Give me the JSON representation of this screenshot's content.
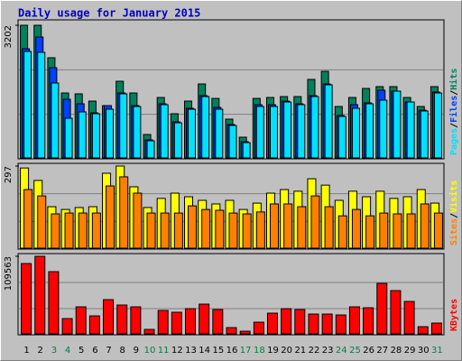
{
  "title": "Daily usage for January 2015",
  "chart_data": [
    {
      "type": "bar",
      "ylim": [
        0,
        3202
      ],
      "yticks": [
        3202
      ],
      "legend_separator": "/",
      "series": [
        {
          "name": "Hits",
          "color": "#00805c",
          "values": [
            3202,
            3202,
            2418,
            1568,
            1547,
            1372,
            1263,
            1851,
            1568,
            566,
            1459,
            1067,
            1372,
            1786,
            1437,
            937,
            501,
            1437,
            1459,
            1481,
            1481,
            1895,
            2091,
            1242,
            1459,
            1677,
            1721,
            1721,
            1459,
            1242,
            1721
          ]
        },
        {
          "name": "Files",
          "color": "#0040ff",
          "values": [
            2636,
            2919,
            2178,
            1416,
            1307,
            1089,
            1263,
            1568,
            1263,
            436,
            1307,
            871,
            1198,
            1503,
            1220,
            806,
            392,
            1285,
            1285,
            1372,
            1307,
            1503,
            1786,
            1024,
            1285,
            1328,
            1634,
            1612,
            1350,
            1154,
            1590
          ]
        },
        {
          "name": "Pages",
          "color": "#00e0ff",
          "values": [
            2570,
            2549,
            1808,
            958,
            1111,
            1067,
            1176,
            1547,
            1242,
            414,
            1285,
            849,
            1176,
            1481,
            1176,
            784,
            370,
            1242,
            1242,
            1350,
            1285,
            1481,
            1764,
            1002,
            1198,
            1307,
            1394,
            1612,
            1350,
            1133,
            1568
          ]
        }
      ]
    },
    {
      "type": "bar",
      "ylim": [
        0,
        297
      ],
      "yticks": [
        297
      ],
      "legend_separator": "/",
      "series": [
        {
          "name": "Visits",
          "color": "#ffff00",
          "values": [
            290,
            245,
            150,
            140,
            147,
            150,
            271,
            297,
            222,
            147,
            180,
            199,
            186,
            173,
            160,
            173,
            140,
            163,
            199,
            212,
            206,
            251,
            228,
            173,
            206,
            186,
            206,
            180,
            186,
            212,
            163
          ]
        },
        {
          "name": "Sites",
          "color": "#ff8000",
          "values": [
            212,
            189,
            124,
            127,
            127,
            127,
            225,
            258,
            199,
            127,
            127,
            127,
            153,
            140,
            137,
            127,
            124,
            131,
            160,
            160,
            150,
            189,
            150,
            117,
            140,
            117,
            127,
            124,
            124,
            160,
            127
          ]
        }
      ]
    },
    {
      "type": "bar",
      "ylim": [
        0,
        109563
      ],
      "yticks": [
        109563
      ],
      "categories": [
        "1",
        "2",
        "3",
        "4",
        "5",
        "6",
        "7",
        "8",
        "9",
        "10",
        "11",
        "12",
        "13",
        "14",
        "15",
        "16",
        "17",
        "18",
        "19",
        "20",
        "21",
        "22",
        "23",
        "24",
        "25",
        "26",
        "27",
        "28",
        "29",
        "30",
        "31"
      ],
      "category_colors": [
        "#000000",
        "#000000",
        "#008040",
        "#008040",
        "#000000",
        "#000000",
        "#000000",
        "#000000",
        "#000000",
        "#008040",
        "#008040",
        "#000000",
        "#000000",
        "#000000",
        "#000000",
        "#000000",
        "#008040",
        "#008040",
        "#000000",
        "#000000",
        "#000000",
        "#000000",
        "#000000",
        "#008040",
        "#008040",
        "#000000",
        "#000000",
        "#000000",
        "#000000",
        "#000000",
        "#008040"
      ],
      "series": [
        {
          "name": "KBytes",
          "color": "#ff0000",
          "values": [
            99372,
            109563,
            87906,
            21658,
            38220,
            25480,
            48412,
            40768,
            38220,
            6370,
            33124,
            30576,
            35672,
            42042,
            34398,
            8918,
            3822,
            16562,
            29302,
            35672,
            34398,
            28028,
            28028,
            26754,
            38220,
            36946,
            71344,
            61152,
            45864,
            10192,
            15288
          ]
        }
      ]
    }
  ]
}
